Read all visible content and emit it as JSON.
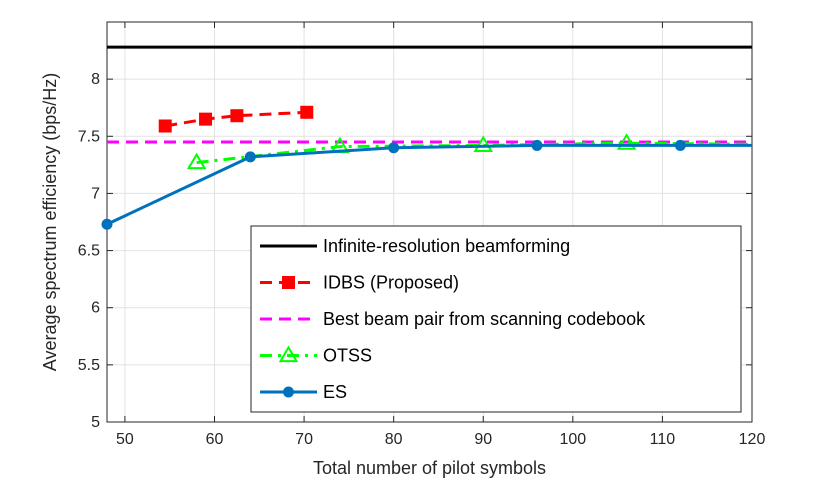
{
  "chart_data": {
    "type": "line",
    "title": "",
    "xlabel": "Total number of pilot symbols",
    "ylabel": "Average spectrum efficiency (bps/Hz)",
    "xlim": [
      48,
      120
    ],
    "ylim": [
      5,
      8.5
    ],
    "xticks": [
      50,
      60,
      70,
      80,
      90,
      100,
      110,
      120
    ],
    "yticks": [
      5,
      5.5,
      6,
      6.5,
      7,
      7.5,
      8
    ],
    "xtick_labels": [
      "50",
      "60",
      "70",
      "80",
      "90",
      "100",
      "110",
      "120"
    ],
    "ytick_labels": [
      "5",
      "5.5",
      "6",
      "6.5",
      "7",
      "7.5",
      "8"
    ],
    "grid": true,
    "legend_position": "bottom-right",
    "series": [
      {
        "name": "Infinite-resolution beamforming",
        "color": "#000000",
        "dash": "solid",
        "marker": "none",
        "points": [
          [
            48,
            8.28
          ],
          [
            120,
            8.28
          ]
        ]
      },
      {
        "name": "IDBS (Proposed)",
        "color": "#ff0000",
        "dash": "dashed",
        "marker": "square",
        "points": [
          [
            54.5,
            7.59
          ],
          [
            59,
            7.65
          ],
          [
            62.5,
            7.68
          ],
          [
            70.3,
            7.71
          ]
        ]
      },
      {
        "name": "Best beam pair from scanning codebook",
        "color": "#ff00ff",
        "dash": "dashed",
        "marker": "none",
        "points": [
          [
            48,
            7.45
          ],
          [
            120,
            7.45
          ]
        ]
      },
      {
        "name": "OTSS",
        "color": "#00ff00",
        "dash": "dashdot",
        "marker": "triangle",
        "points": [
          [
            58,
            7.27
          ],
          [
            74,
            7.41
          ],
          [
            90,
            7.42
          ],
          [
            106,
            7.44
          ],
          [
            120,
            7.43
          ]
        ]
      },
      {
        "name": "ES",
        "color": "#0072bd",
        "dash": "solid",
        "marker": "circle",
        "points": [
          [
            48,
            6.73
          ],
          [
            64,
            7.32
          ],
          [
            80,
            7.4
          ],
          [
            96,
            7.42
          ],
          [
            112,
            7.42
          ],
          [
            120,
            7.42
          ]
        ]
      }
    ]
  }
}
